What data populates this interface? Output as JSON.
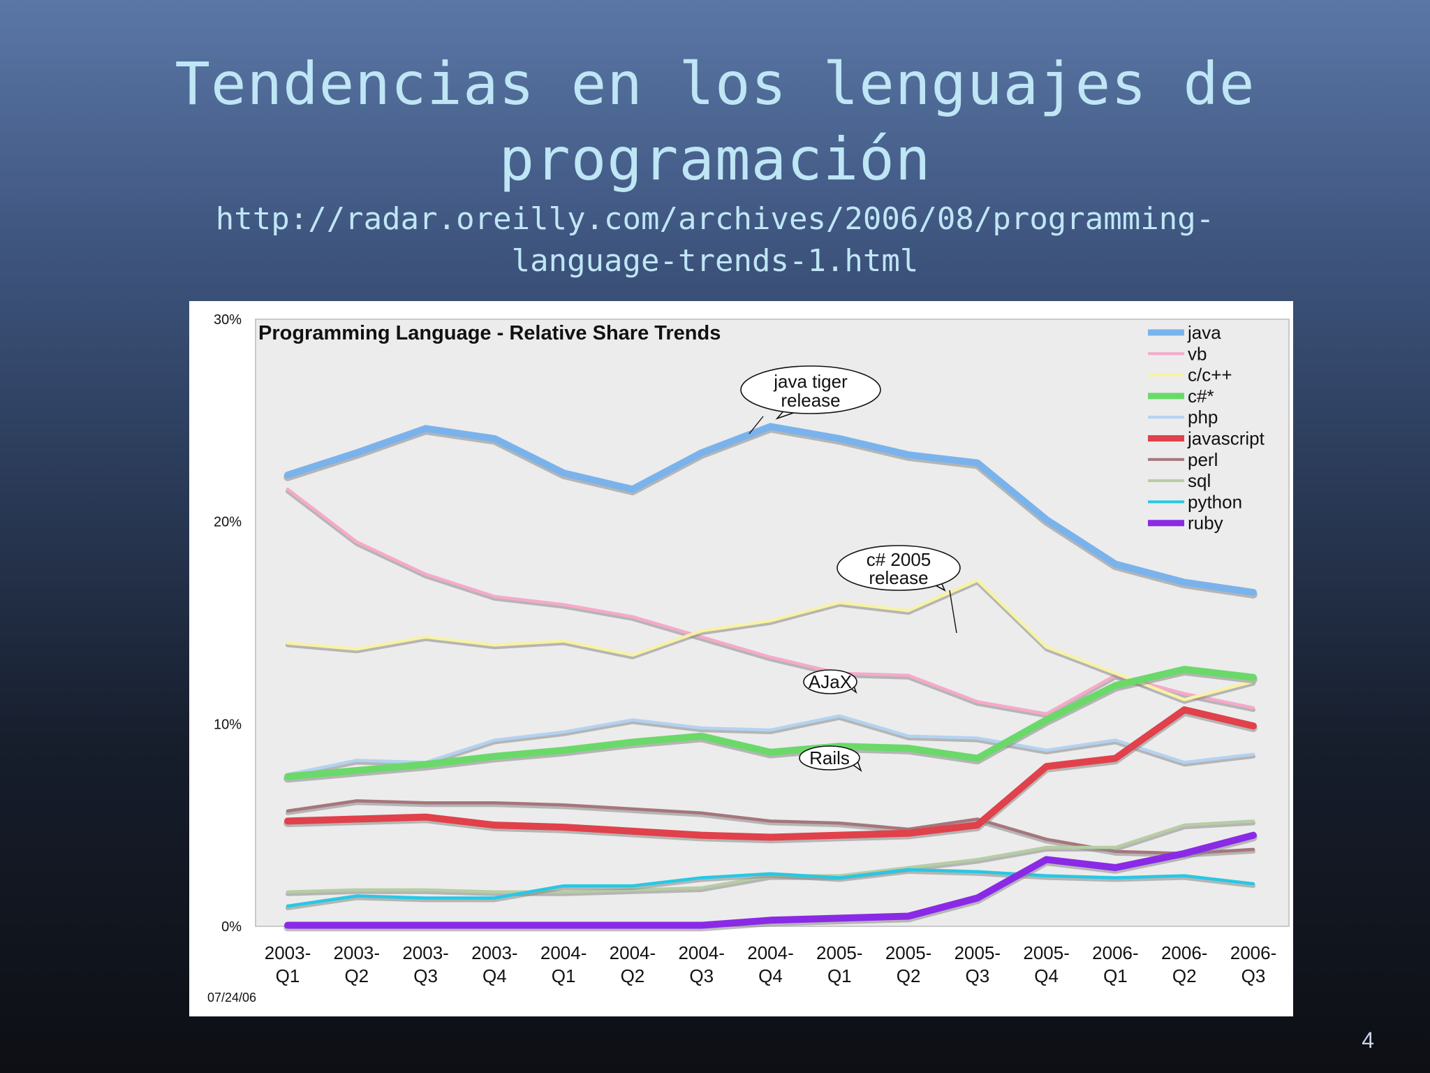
{
  "slide": {
    "title_line1": "Tendencias en los lenguajes de",
    "title_line2": "programación",
    "url_line1": "http://radar.oreilly.com/archives/2006/08/programming-",
    "url_line2": "language-trends-1.html",
    "page_number": "4"
  },
  "chart_data": {
    "type": "line",
    "title": "Programming Language - Relative Share Trends",
    "date_stamp": "07/24/06",
    "xlabel": "",
    "ylabel": "",
    "ylim": [
      0,
      30
    ],
    "yticks": [
      "0%",
      "10%",
      "20%",
      "30%"
    ],
    "ytick_values": [
      0,
      10,
      20,
      30
    ],
    "x": [
      [
        "2003-",
        "Q1"
      ],
      [
        "2003-",
        "Q2"
      ],
      [
        "2003-",
        "Q3"
      ],
      [
        "2003-",
        "Q4"
      ],
      [
        "2004-",
        "Q1"
      ],
      [
        "2004-",
        "Q2"
      ],
      [
        "2004-",
        "Q3"
      ],
      [
        "2004-",
        "Q4"
      ],
      [
        "2005-",
        "Q1"
      ],
      [
        "2005-",
        "Q2"
      ],
      [
        "2005-",
        "Q3"
      ],
      [
        "2005-",
        "Q4"
      ],
      [
        "2006-",
        "Q1"
      ],
      [
        "2006-",
        "Q2"
      ],
      [
        "2006-",
        "Q3"
      ]
    ],
    "legend_position": "top-right",
    "grid": false,
    "series": [
      {
        "name": "java",
        "color": "#7ab3ec",
        "thick": true,
        "values": [
          22.3,
          23.4,
          24.6,
          24.1,
          22.4,
          21.6,
          23.4,
          24.7,
          24.1,
          23.3,
          22.9,
          20.1,
          17.9,
          17.0,
          16.5
        ]
      },
      {
        "name": "vb",
        "color": "#f7a9c9",
        "thick": false,
        "values": [
          21.6,
          19.0,
          17.4,
          16.3,
          15.9,
          15.3,
          14.3,
          13.3,
          12.5,
          12.4,
          11.1,
          10.5,
          12.4,
          11.5,
          10.8
        ]
      },
      {
        "name": "c/c++",
        "color": "#f7f2a6",
        "thick": false,
        "values": [
          14.0,
          13.7,
          14.3,
          13.9,
          14.1,
          13.4,
          14.6,
          15.1,
          16.0,
          15.6,
          17.1,
          13.8,
          12.5,
          11.2,
          12.1
        ]
      },
      {
        "name": "c#*",
        "color": "#6ad96a",
        "thick": true,
        "values": [
          7.4,
          7.7,
          8.0,
          8.4,
          8.7,
          9.1,
          9.4,
          8.6,
          8.9,
          8.8,
          8.3,
          10.2,
          11.9,
          12.7,
          12.3
        ]
      },
      {
        "name": "php",
        "color": "#b4d2f1",
        "thick": false,
        "values": [
          7.5,
          8.2,
          8.1,
          9.2,
          9.6,
          10.2,
          9.8,
          9.7,
          10.4,
          9.4,
          9.3,
          8.7,
          9.2,
          8.1,
          8.5
        ]
      },
      {
        "name": "javascript",
        "color": "#e0414a",
        "thick": true,
        "values": [
          5.2,
          5.3,
          5.4,
          5.0,
          4.9,
          4.7,
          4.5,
          4.4,
          4.5,
          4.6,
          5.0,
          7.9,
          8.3,
          10.7,
          9.9
        ]
      },
      {
        "name": "perl",
        "color": "#a5767c",
        "thick": false,
        "values": [
          5.7,
          6.2,
          6.1,
          6.1,
          6.0,
          5.8,
          5.6,
          5.2,
          5.1,
          4.8,
          5.3,
          4.3,
          3.7,
          3.6,
          3.8
        ]
      },
      {
        "name": "sql",
        "color": "#b7cda5",
        "thick": false,
        "values": [
          1.7,
          1.8,
          1.8,
          1.7,
          1.7,
          1.8,
          1.9,
          2.5,
          2.5,
          2.9,
          3.3,
          3.9,
          3.9,
          5.0,
          5.2
        ]
      },
      {
        "name": "python",
        "color": "#27c8e4",
        "thick": false,
        "values": [
          1.0,
          1.5,
          1.4,
          1.4,
          2.0,
          2.0,
          2.4,
          2.6,
          2.4,
          2.8,
          2.7,
          2.5,
          2.4,
          2.5,
          2.1
        ]
      },
      {
        "name": "ruby",
        "color": "#8a2ae6",
        "thick": true,
        "values": [
          0.05,
          0.05,
          0.05,
          0.05,
          0.05,
          0.05,
          0.05,
          0.3,
          0.4,
          0.5,
          1.4,
          3.3,
          2.9,
          3.6,
          4.5
        ]
      }
    ],
    "annotations": [
      {
        "name": "java-tiger",
        "lines": [
          "java tiger",
          "release"
        ]
      },
      {
        "name": "csharp-2005",
        "lines": [
          "c# 2005",
          "release"
        ]
      },
      {
        "name": "ajax",
        "lines": [
          "AJaX"
        ]
      },
      {
        "name": "rails",
        "lines": [
          "Rails"
        ]
      }
    ]
  }
}
